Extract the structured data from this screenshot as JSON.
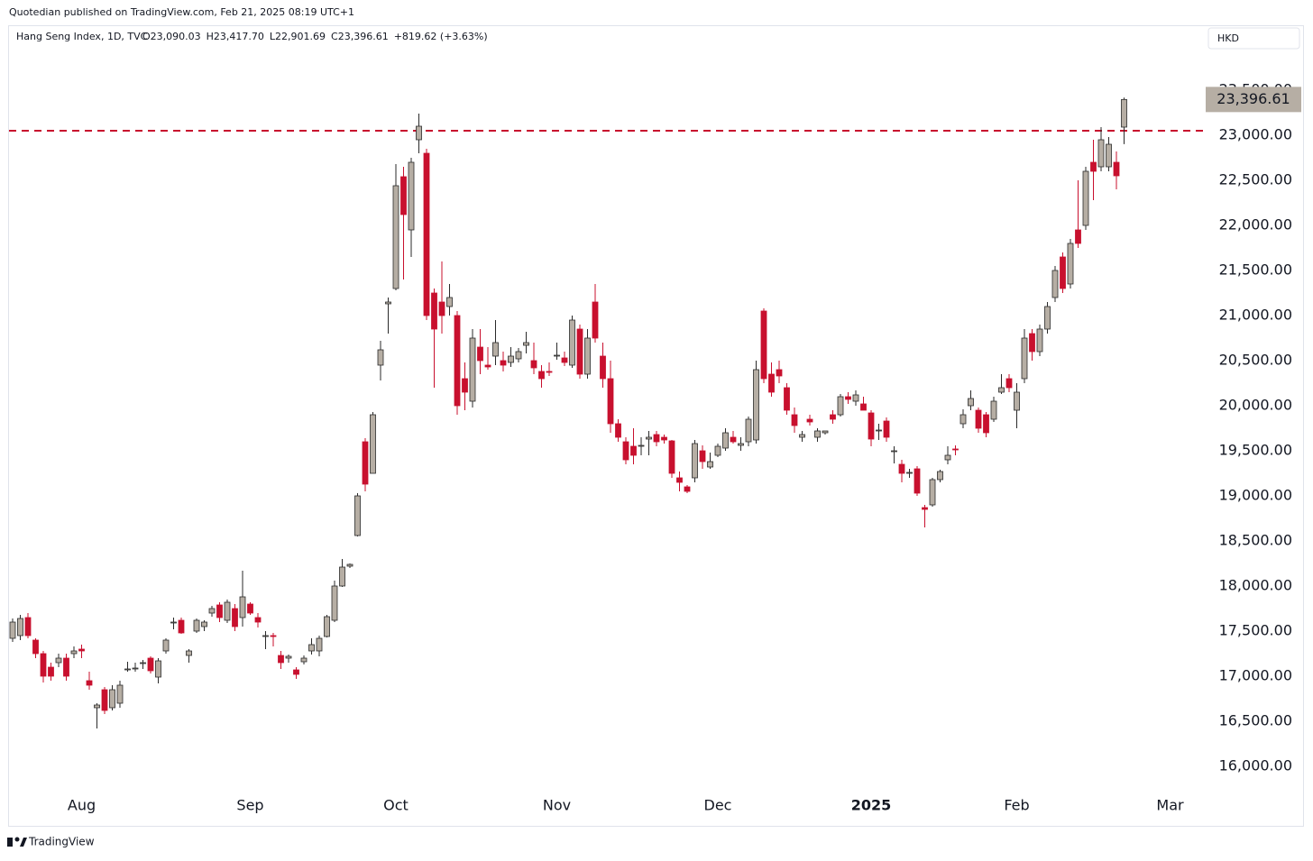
{
  "header": {
    "publisher": "Quotedian published on TradingView.com, Feb 21, 2025 08:19 UTC+1",
    "brand": "TradingView"
  },
  "chart_data": {
    "type": "candlestick",
    "symbol": "Hang Seng Index, 1D, TVC",
    "legend_values": [
      "O23,090.03",
      "H23,417.70",
      "L22,901.69",
      "C23,396.61",
      "+819.62 (+3.63%)"
    ],
    "currency": "HKD",
    "up_color": "#b6aea4",
    "down_color": "#c8102e",
    "ylim": [
      15800,
      24200
    ],
    "yticks": [
      {
        "value": 16000,
        "label": "16,000.00"
      },
      {
        "value": 16500,
        "label": "16,500.00"
      },
      {
        "value": 17000,
        "label": "17,000.00"
      },
      {
        "value": 17500,
        "label": "17,500.00"
      },
      {
        "value": 18000,
        "label": "18,000.00"
      },
      {
        "value": 18500,
        "label": "18,500.00"
      },
      {
        "value": 19000,
        "label": "19,000.00"
      },
      {
        "value": 19500,
        "label": "19,500.00"
      },
      {
        "value": 20000,
        "label": "20,000.00"
      },
      {
        "value": 20500,
        "label": "20,500.00"
      },
      {
        "value": 21000,
        "label": "21,000.00"
      },
      {
        "value": 21500,
        "label": "21,500.00"
      },
      {
        "value": 22000,
        "label": "22,000.00"
      },
      {
        "value": 22500,
        "label": "22,500.00"
      },
      {
        "value": 23000,
        "label": "23,000.00"
      },
      {
        "value": 23500,
        "label": "23,500.00"
      }
    ],
    "price_tag": {
      "value": 23396.61,
      "label": "23,396.61"
    },
    "hline": {
      "value": 23050,
      "color": "#c8102e"
    },
    "categories": [
      null,
      null,
      null,
      null,
      null,
      null,
      null,
      null,
      null,
      "Aug",
      null,
      null,
      null,
      null,
      null,
      null,
      null,
      null,
      null,
      null,
      null,
      null,
      null,
      null,
      null,
      null,
      null,
      null,
      null,
      null,
      null,
      "Sep",
      null,
      null,
      null,
      null,
      null,
      null,
      null,
      null,
      null,
      null,
      null,
      null,
      null,
      null,
      null,
      null,
      null,
      null,
      "Oct",
      null,
      null,
      null,
      null,
      null,
      null,
      null,
      null,
      null,
      null,
      null,
      null,
      null,
      null,
      null,
      null,
      null,
      null,
      null,
      null,
      "Nov",
      null,
      null,
      null,
      null,
      null,
      null,
      null,
      null,
      null,
      null,
      null,
      null,
      null,
      null,
      null,
      null,
      null,
      null,
      null,
      null,
      "Dec",
      null,
      null,
      null,
      null,
      null,
      null,
      null,
      null,
      null,
      null,
      null,
      null,
      null,
      null,
      null,
      null,
      null,
      null,
      null,
      "2025",
      null,
      null,
      null,
      null,
      null,
      null,
      null,
      null,
      null,
      null,
      null,
      null,
      null,
      null,
      null,
      null,
      null,
      null,
      "Feb",
      null,
      null,
      null,
      null,
      null,
      null,
      null,
      null,
      null,
      null,
      null,
      null,
      null,
      null,
      null,
      null,
      null,
      null,
      null,
      "Mar"
    ],
    "ohlc": [
      [
        17420,
        17640,
        17380,
        17600
      ],
      [
        17450,
        17680,
        17400,
        17640
      ],
      [
        17650,
        17700,
        17420,
        17450
      ],
      [
        17400,
        17420,
        17200,
        17250
      ],
      [
        17250,
        17280,
        16930,
        17000
      ],
      [
        17100,
        17150,
        16950,
        17000
      ],
      [
        17150,
        17250,
        17100,
        17200
      ],
      [
        17200,
        17250,
        16950,
        17000
      ],
      [
        17250,
        17330,
        17200,
        17280
      ],
      [
        17300,
        17350,
        17200,
        17280
      ],
      [
        16950,
        17050,
        16850,
        16900
      ],
      [
        16650,
        16700,
        16420,
        16680
      ],
      [
        16850,
        16880,
        16580,
        16620
      ],
      [
        16650,
        16900,
        16620,
        16850
      ],
      [
        16700,
        16950,
        16650,
        16900
      ],
      [
        17070,
        17160,
        17050,
        17080
      ],
      [
        17080,
        17150,
        17050,
        17090
      ],
      [
        17140,
        17180,
        17080,
        17150
      ],
      [
        17200,
        17220,
        17030,
        17060
      ],
      [
        16990,
        17200,
        16920,
        17170
      ],
      [
        17280,
        17420,
        17250,
        17400
      ],
      [
        17590,
        17650,
        17520,
        17600
      ],
      [
        17620,
        17650,
        17470,
        17480
      ],
      [
        17230,
        17300,
        17150,
        17280
      ],
      [
        17500,
        17640,
        17480,
        17620
      ],
      [
        17550,
        17620,
        17500,
        17600
      ],
      [
        17700,
        17780,
        17660,
        17750
      ],
      [
        17790,
        17820,
        17600,
        17650
      ],
      [
        17620,
        17850,
        17590,
        17820
      ],
      [
        17750,
        17800,
        17500,
        17550
      ],
      [
        17650,
        18170,
        17550,
        17880
      ],
      [
        17800,
        17820,
        17680,
        17700
      ],
      [
        17650,
        17700,
        17540,
        17600
      ],
      [
        17450,
        17500,
        17300,
        17450
      ],
      [
        17450,
        17480,
        17330,
        17440
      ],
      [
        17230,
        17280,
        17080,
        17150
      ],
      [
        17200,
        17240,
        17150,
        17220
      ],
      [
        17070,
        17100,
        16970,
        17020
      ],
      [
        17160,
        17230,
        17130,
        17200
      ],
      [
        17280,
        17420,
        17240,
        17350
      ],
      [
        17280,
        17450,
        17220,
        17420
      ],
      [
        17440,
        17680,
        17430,
        17660
      ],
      [
        17620,
        18060,
        17600,
        18000
      ],
      [
        18000,
        18300,
        17990,
        18210
      ],
      [
        18220,
        18250,
        18200,
        18240
      ],
      [
        18560,
        19030,
        18550,
        19000
      ],
      [
        19600,
        19640,
        19050,
        19130
      ],
      [
        19250,
        19930,
        19250,
        19900
      ],
      [
        20450,
        20720,
        20280,
        20620
      ],
      [
        21130,
        21200,
        20800,
        21150
      ],
      [
        21300,
        22680,
        21280,
        22440
      ],
      [
        22540,
        22650,
        21400,
        22120
      ],
      [
        21950,
        22750,
        21650,
        22700
      ],
      [
        22950,
        23240,
        22800,
        23100
      ],
      [
        22800,
        22850,
        20950,
        21000
      ],
      [
        21250,
        21300,
        20200,
        20850
      ],
      [
        21150,
        21600,
        20800,
        21000
      ],
      [
        21100,
        21350,
        21000,
        21200
      ],
      [
        21000,
        21050,
        19900,
        20000
      ],
      [
        20300,
        20480,
        19950,
        20150
      ],
      [
        20050,
        20850,
        19980,
        20750
      ],
      [
        20650,
        20850,
        20350,
        20500
      ],
      [
        20450,
        20650,
        20400,
        20430
      ],
      [
        20550,
        20950,
        20450,
        20700
      ],
      [
        20500,
        20600,
        20380,
        20450
      ],
      [
        20480,
        20650,
        20430,
        20550
      ],
      [
        20520,
        20640,
        20480,
        20600
      ],
      [
        20670,
        20820,
        20580,
        20700
      ],
      [
        20500,
        20700,
        20350,
        20420
      ],
      [
        20380,
        20450,
        20200,
        20300
      ],
      [
        20380,
        20480,
        20330,
        20370
      ],
      [
        20560,
        20700,
        20510,
        20560
      ],
      [
        20530,
        20600,
        20440,
        20480
      ],
      [
        20450,
        21000,
        20420,
        20950
      ],
      [
        20850,
        20900,
        20300,
        20350
      ],
      [
        20350,
        20850,
        20300,
        20750
      ],
      [
        21150,
        21350,
        20700,
        20750
      ],
      [
        20550,
        20700,
        20200,
        20300
      ],
      [
        20300,
        20500,
        19700,
        19800
      ],
      [
        19800,
        19850,
        19600,
        19650
      ],
      [
        19600,
        19650,
        19350,
        19400
      ],
      [
        19550,
        19750,
        19350,
        19450
      ],
      [
        19550,
        19650,
        19450,
        19560
      ],
      [
        19630,
        19720,
        19450,
        19650
      ],
      [
        19680,
        19720,
        19550,
        19600
      ],
      [
        19650,
        19680,
        19580,
        19620
      ],
      [
        19610,
        19620,
        19200,
        19250
      ],
      [
        19200,
        19270,
        19050,
        19150
      ],
      [
        19100,
        19120,
        19030,
        19050
      ],
      [
        19200,
        19620,
        19150,
        19580
      ],
      [
        19500,
        19560,
        19300,
        19380
      ],
      [
        19320,
        19480,
        19300,
        19380
      ],
      [
        19450,
        19580,
        19430,
        19550
      ],
      [
        19530,
        19750,
        19500,
        19700
      ],
      [
        19650,
        19720,
        19580,
        19600
      ],
      [
        19560,
        19650,
        19500,
        19580
      ],
      [
        19600,
        19880,
        19550,
        19850
      ],
      [
        19620,
        20500,
        19580,
        20400
      ],
      [
        21050,
        21080,
        20250,
        20300
      ],
      [
        20350,
        20480,
        20100,
        20150
      ],
      [
        20400,
        20500,
        20250,
        20330
      ],
      [
        20200,
        20250,
        19900,
        19950
      ],
      [
        19900,
        19980,
        19700,
        19780
      ],
      [
        19650,
        19720,
        19600,
        19680
      ],
      [
        19850,
        19900,
        19780,
        19820
      ],
      [
        19650,
        19750,
        19600,
        19720
      ],
      [
        19700,
        19720,
        19680,
        19720
      ],
      [
        19900,
        19950,
        19800,
        19850
      ],
      [
        19900,
        20130,
        19880,
        20100
      ],
      [
        20100,
        20150,
        20020,
        20070
      ],
      [
        20050,
        20170,
        20000,
        20120
      ],
      [
        20020,
        20100,
        19950,
        19950
      ],
      [
        19920,
        19950,
        19550,
        19630
      ],
      [
        19720,
        19800,
        19620,
        19730
      ],
      [
        19830,
        19870,
        19600,
        19650
      ],
      [
        19500,
        19550,
        19360,
        19500
      ],
      [
        19350,
        19400,
        19150,
        19250
      ],
      [
        19250,
        19300,
        19200,
        19260
      ],
      [
        19300,
        19330,
        19000,
        19030
      ],
      [
        18870,
        18900,
        18650,
        18850
      ],
      [
        18900,
        19200,
        18880,
        19180
      ],
      [
        19180,
        19290,
        19150,
        19270
      ],
      [
        19400,
        19550,
        19350,
        19450
      ],
      [
        19520,
        19560,
        19450,
        19510
      ],
      [
        19800,
        19960,
        19750,
        19900
      ],
      [
        20000,
        20170,
        19950,
        20080
      ],
      [
        19950,
        19980,
        19700,
        19750
      ],
      [
        19900,
        19930,
        19650,
        19700
      ],
      [
        19850,
        20100,
        19820,
        20050
      ],
      [
        20150,
        20350,
        20130,
        20200
      ],
      [
        20300,
        20350,
        20150,
        20200
      ],
      [
        19950,
        20250,
        19750,
        20150
      ],
      [
        20300,
        20850,
        20250,
        20750
      ],
      [
        20800,
        20850,
        20500,
        20600
      ],
      [
        20600,
        20900,
        20550,
        20850
      ],
      [
        20850,
        21150,
        20800,
        21100
      ],
      [
        21200,
        21550,
        21150,
        21500
      ],
      [
        21650,
        21700,
        21250,
        21300
      ],
      [
        21350,
        21850,
        21300,
        21800
      ],
      [
        21950,
        22500,
        21750,
        21800
      ],
      [
        22000,
        22650,
        21950,
        22600
      ],
      [
        22700,
        22950,
        22280,
        22600
      ],
      [
        22650,
        23090,
        22600,
        22950
      ],
      [
        22650,
        22980,
        22600,
        22900
      ],
      [
        22700,
        22820,
        22400,
        22550
      ],
      [
        23090.03,
        23417.7,
        22901.69,
        23396.61
      ],
      null,
      null,
      null,
      null,
      null,
      null
    ]
  }
}
